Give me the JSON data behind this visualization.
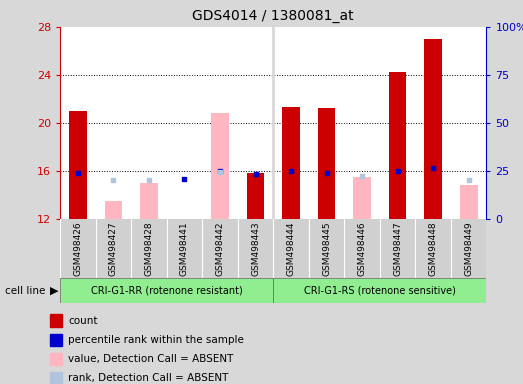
{
  "title": "GDS4014 / 1380081_at",
  "samples": [
    "GSM498426",
    "GSM498427",
    "GSM498428",
    "GSM498441",
    "GSM498442",
    "GSM498443",
    "GSM498444",
    "GSM498445",
    "GSM498446",
    "GSM498447",
    "GSM498448",
    "GSM498449"
  ],
  "count_values": [
    21.0,
    null,
    null,
    null,
    null,
    15.8,
    21.3,
    21.2,
    null,
    24.2,
    27.0,
    null
  ],
  "count_absent_values": [
    null,
    13.5,
    15.0,
    11.8,
    20.8,
    null,
    null,
    null,
    15.5,
    null,
    null,
    14.8
  ],
  "rank_values": [
    15.8,
    null,
    null,
    15.3,
    16.0,
    15.7,
    16.0,
    15.8,
    null,
    16.0,
    16.2,
    null
  ],
  "rank_absent_values": [
    null,
    15.2,
    15.2,
    null,
    15.9,
    null,
    null,
    null,
    15.6,
    null,
    null,
    15.2
  ],
  "cell_lines": [
    {
      "label": "CRI-G1-RR (rotenone resistant)",
      "start": 0,
      "end": 5,
      "color": "#90EE90"
    },
    {
      "label": "CRI-G1-RS (rotenone sensitive)",
      "start": 6,
      "end": 11,
      "color": "#90EE90"
    }
  ],
  "cell_line_label": "cell line",
  "ylim": [
    12,
    28
  ],
  "yticks": [
    12,
    16,
    20,
    24,
    28
  ],
  "y2lim": [
    0,
    100
  ],
  "y2ticks": [
    0,
    25,
    50,
    75,
    100
  ],
  "y_color": "#cc0000",
  "y2_color": "#0000cc",
  "grid_yticks": [
    16,
    20,
    24
  ],
  "bar_width": 0.5,
  "count_color": "#cc0000",
  "count_absent_color": "#ffb6c1",
  "rank_color": "#0000cc",
  "rank_absent_color": "#b0c4de",
  "background_color": "#d8d8d8",
  "plot_bg_color": "#ffffff",
  "xtick_bg_color": "#d0d0d0",
  "legend_items": [
    {
      "label": "count",
      "color": "#cc0000"
    },
    {
      "label": "percentile rank within the sample",
      "color": "#0000cc"
    },
    {
      "label": "value, Detection Call = ABSENT",
      "color": "#ffb6c1"
    },
    {
      "label": "rank, Detection Call = ABSENT",
      "color": "#b0c4de"
    }
  ]
}
